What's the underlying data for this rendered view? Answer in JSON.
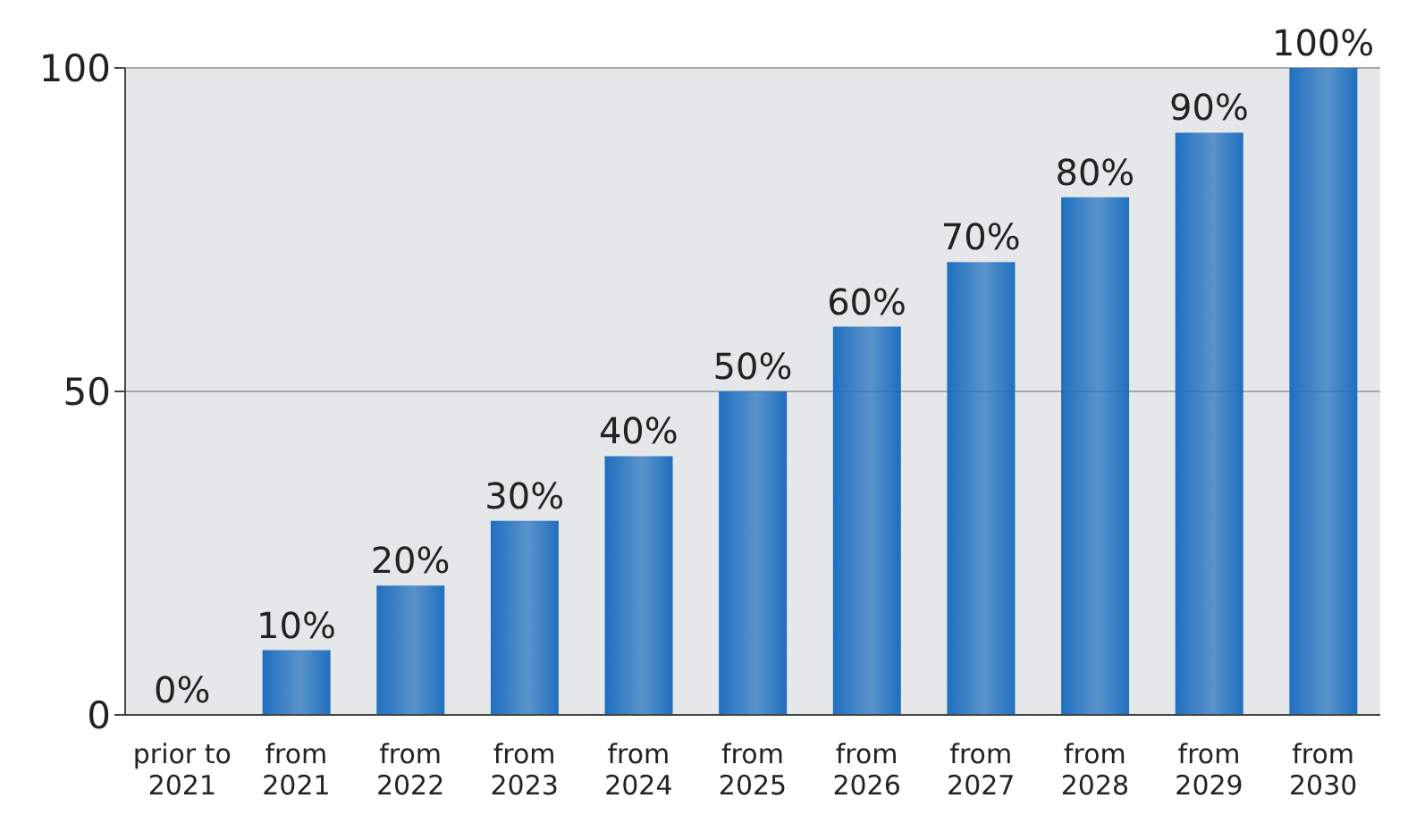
{
  "chart_data": {
    "type": "bar",
    "categories": [
      "prior to 2021",
      "from 2021",
      "from 2022",
      "from 2023",
      "from 2024",
      "from 2025",
      "from 2026",
      "from 2027",
      "from 2028",
      "from 2029",
      "from 2030"
    ],
    "values": [
      0,
      10,
      20,
      30,
      40,
      50,
      60,
      70,
      80,
      90,
      100
    ],
    "value_labels": [
      "0%",
      "10%",
      "20%",
      "30%",
      "40%",
      "50%",
      "60%",
      "70%",
      "80%",
      "90%",
      "100%"
    ],
    "color": "#1f6fbf",
    "ylim": [
      0,
      100
    ],
    "yticks": [
      0,
      50,
      100
    ],
    "grid": "y"
  }
}
